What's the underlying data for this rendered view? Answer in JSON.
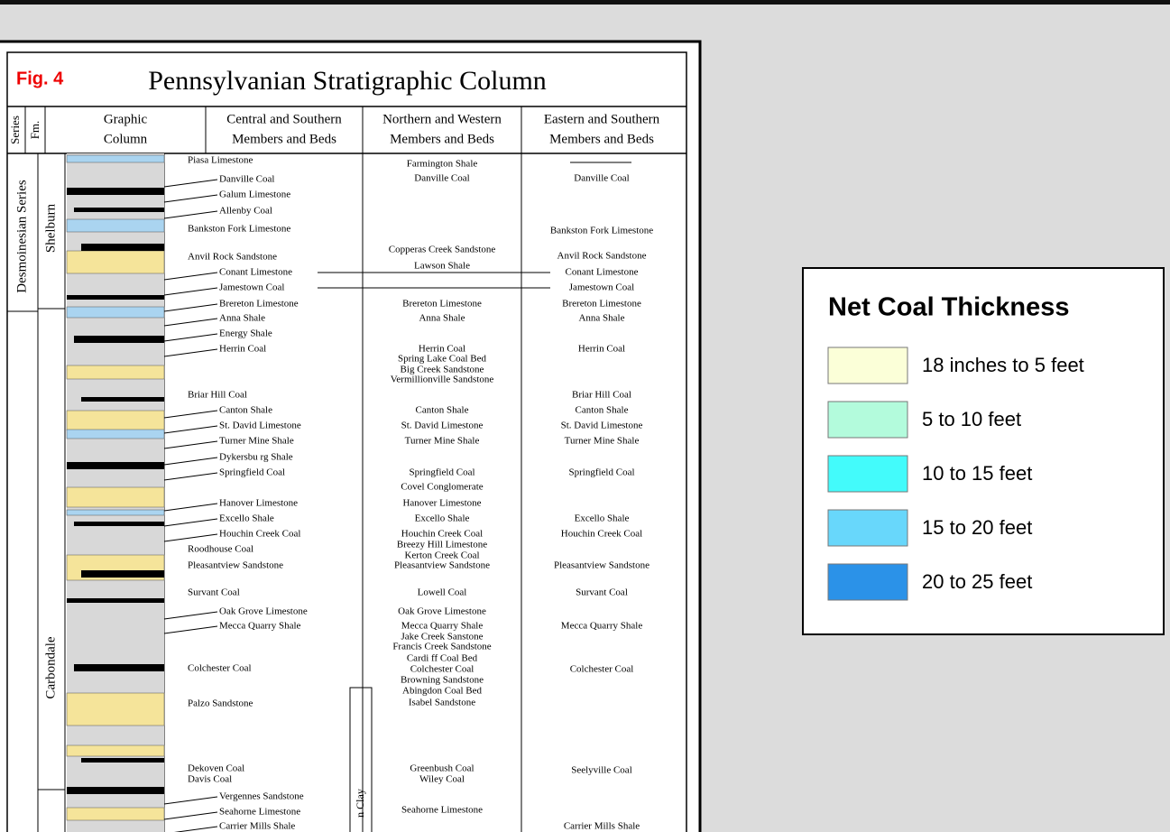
{
  "figure": {
    "label": "Fig. 4",
    "title": "Pennsylvanian Stratigraphic Column",
    "headers": {
      "series": "Series",
      "formation": "Fm.",
      "graphic": [
        "Graphic",
        "Column"
      ],
      "central": [
        "Central and Southern",
        "Members and Beds"
      ],
      "northern": [
        "Northern and  Western",
        "Members and Beds"
      ],
      "eastern": [
        "Eastern and Southern",
        "Members and Beds"
      ]
    },
    "series": [
      "Desmoinesian Series"
    ],
    "formations": [
      "Shelburn",
      "Carbondale",
      "n Clay"
    ],
    "central": [
      "Piasa Limestone",
      "Danville Coal",
      "Galum Limestone",
      "Allenby Coal",
      "Bankston Fork Limestone",
      "Anvil Rock Sandstone",
      "Conant Limestone",
      "Jamestown Coal",
      "Brereton Limestone",
      "Anna Shale",
      "Energy Shale",
      "Herrin Coal",
      "Briar Hill Coal",
      "Canton Shale",
      "St. David Limestone",
      "Turner Mine Shale",
      "Dykersbu rg Shale",
      "Springfield Coal",
      "Hanover Limestone",
      "Excello Shale",
      "Houchin Creek Coal",
      "Roodhouse Coal",
      "Pleasantview Sandstone",
      "Survant Coal",
      "Oak Grove Limestone",
      "Mecca Quarry Shale",
      "Colchester Coal",
      "Palzo Sandstone",
      "Dekoven Coal",
      "Davis Coal",
      "Vergennes Sandstone",
      "Seahorne Limestone",
      "Carrier Mills Shale"
    ],
    "northern": [
      "Farmington Shale",
      "Danville Coal",
      "Copperas Creek Sandstone",
      "Lawson Shale",
      "Brereton Limestone",
      "Anna Shale",
      "Herrin Coal",
      "Spring Lake Coal Bed",
      "Big Creek Sandstone",
      "Vermillionville Sandstone",
      "Canton Shale",
      "St. David Limestone",
      "Turner Mine Shale",
      "Springfield Coal",
      "Covel Conglomerate",
      "Hanover Limestone",
      "Excello Shale",
      "Houchin Creek Coal",
      "Breezy Hill Limestone",
      "Kerton Creek Coal",
      "Pleasantview Sandstone",
      "Lowell Coal",
      "Oak Grove Limestone",
      "Mecca Quarry Shale",
      "Jake Creek Sanstone",
      "Francis Creek Sandstone",
      "Cardi ff Coal Bed",
      "Colchester Coal",
      "Browning Sandstone",
      "Abingdon Coal Bed",
      "Isabel Sandstone",
      "Greenbush Coal",
      "Wiley Coal",
      "Seahorne Limestone"
    ],
    "eastern": [
      "Danville Coal",
      "Bankston Fork Limestone",
      "Anvil Rock Sandstone",
      "Conant Limestone",
      "Jamestown Coal",
      "Brereton Limestone",
      "Anna Shale",
      "Herrin Coal",
      "Briar Hill Coal",
      "Canton Shale",
      "St. David Limestone",
      "Turner Mine Shale",
      "Springfield Coal",
      "Excello Shale",
      "Houchin Creek Coal",
      "Pleasantview Sandstone",
      "Survant Coal",
      "Mecca Quarry Shale",
      "Colchester Coal",
      "Seelyville Coal",
      "Carrier Mills Shale"
    ]
  },
  "legend": {
    "title": "Net Coal Thickness",
    "items": [
      {
        "label": "18 inches to 5 feet",
        "color": "#fbffd8"
      },
      {
        "label": "5 to 10 feet",
        "color": "#b3fbdc"
      },
      {
        "label": "10 to 15 feet",
        "color": "#43fbfb"
      },
      {
        "label": "15 to 20 feet",
        "color": "#68d7fb"
      },
      {
        "label": "20 to 25 feet",
        "color": "#2b92e8"
      }
    ]
  }
}
